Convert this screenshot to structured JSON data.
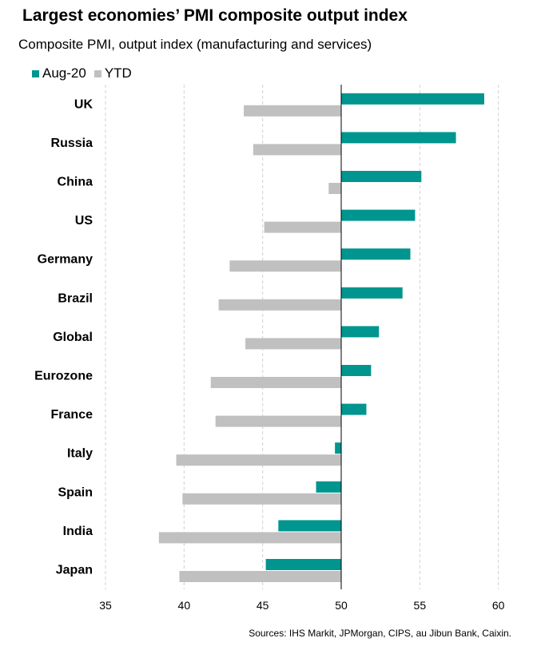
{
  "title": "Largest economies’ PMI composite output index",
  "subtitle": "Composite PMI, output index (manufacturing and services)",
  "source": "Sources: IHS Markit, JPMorgan, CIPS, au Jibun Bank, Caixin.",
  "chart_data": {
    "type": "bar",
    "orientation": "horizontal",
    "categories": [
      "UK",
      "Russia",
      "China",
      "US",
      "Germany",
      "Brazil",
      "Global",
      "Eurozone",
      "France",
      "Italy",
      "Spain",
      "India",
      "Japan"
    ],
    "baseline": 50,
    "xlim": [
      35,
      62
    ],
    "xticks": [
      35,
      40,
      45,
      50,
      55,
      60
    ],
    "grid": true,
    "legend_position": "top-left",
    "series": [
      {
        "name": "Aug-20",
        "color": "#00958f",
        "values": [
          59.1,
          57.3,
          55.1,
          54.7,
          54.4,
          53.9,
          52.4,
          51.9,
          51.6,
          49.6,
          48.4,
          46.0,
          45.2
        ]
      },
      {
        "name": "YTD",
        "color": "#c0c0c0",
        "values": [
          43.8,
          44.4,
          49.2,
          45.1,
          42.9,
          42.2,
          43.9,
          41.7,
          42.0,
          39.5,
          39.9,
          38.4,
          39.7
        ]
      }
    ]
  }
}
